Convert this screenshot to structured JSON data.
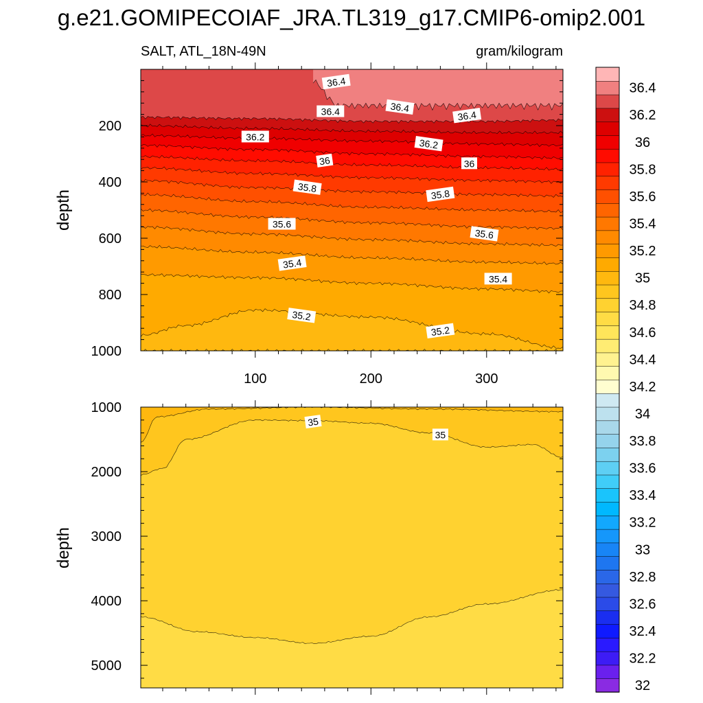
{
  "chart_data": [
    {
      "type": "heatmap",
      "subtype": "filled-contour",
      "panel": "upper",
      "title": "g.e21.GOMIPECOIAF_JRA.TL319_g17.CMIP6-omip2.001",
      "left_string": "SALT, ATL_18N-49N",
      "right_string": "gram/kilogram",
      "ylabel": "depth",
      "xlim": [
        1,
        366
      ],
      "ylim": [
        0,
        1000
      ],
      "y_inverted": true,
      "x_ticks": [
        100,
        200,
        300
      ],
      "x_tick_labels": [
        "100",
        "200",
        "300"
      ],
      "y_ticks": [
        200,
        400,
        600,
        800,
        1000
      ],
      "y_tick_labels": [
        "200",
        "400",
        "600",
        "800",
        "1000"
      ],
      "contour_bands": [
        {
          "lower": 36.4,
          "upper": 36.5,
          "x_start": 150,
          "x_end": 366,
          "depth_top": 0,
          "depth_bottom": 145
        },
        {
          "lower": 36.3,
          "upper": 36.4,
          "depth_at_x": [
            [
              1,
              170
            ],
            [
              100,
              175
            ],
            [
              200,
              185
            ],
            [
              300,
              185
            ],
            [
              366,
              180
            ]
          ]
        },
        {
          "lower": 36.2,
          "upper": 36.3,
          "depth_at_x": [
            [
              1,
              200
            ],
            [
              100,
              210
            ],
            [
              200,
              220
            ],
            [
              300,
              225
            ],
            [
              366,
              225
            ]
          ]
        },
        {
          "lower": 36.1,
          "upper": 36.2,
          "depth_at_x": [
            [
              1,
              235
            ],
            [
              100,
              245
            ],
            [
              200,
              255
            ],
            [
              300,
              265
            ],
            [
              366,
              270
            ]
          ]
        },
        {
          "lower": 36.0,
          "upper": 36.1,
          "depth_at_x": [
            [
              1,
              270
            ],
            [
              100,
              285
            ],
            [
              200,
              300
            ],
            [
              300,
              310
            ],
            [
              366,
              315
            ]
          ]
        },
        {
          "lower": 35.9,
          "upper": 36.0,
          "depth_at_x": [
            [
              1,
              310
            ],
            [
              100,
              325
            ],
            [
              200,
              340
            ],
            [
              300,
              350
            ],
            [
              366,
              355
            ]
          ]
        },
        {
          "lower": 35.8,
          "upper": 35.9,
          "depth_at_x": [
            [
              1,
              350
            ],
            [
              100,
              370
            ],
            [
              200,
              385
            ],
            [
              300,
              395
            ],
            [
              366,
              400
            ]
          ]
        },
        {
          "lower": 35.7,
          "upper": 35.8,
          "depth_at_x": [
            [
              1,
              395
            ],
            [
              100,
              420
            ],
            [
              200,
              435
            ],
            [
              300,
              445
            ],
            [
              366,
              450
            ]
          ]
        },
        {
          "lower": 35.6,
          "upper": 35.7,
          "depth_at_x": [
            [
              1,
              445
            ],
            [
              100,
              470
            ],
            [
              200,
              490
            ],
            [
              300,
              500
            ],
            [
              366,
              505
            ]
          ]
        },
        {
          "lower": 35.5,
          "upper": 35.6,
          "depth_at_x": [
            [
              1,
              500
            ],
            [
              100,
              525
            ],
            [
              200,
              545
            ],
            [
              300,
              560
            ],
            [
              366,
              565
            ]
          ]
        },
        {
          "lower": 35.4,
          "upper": 35.5,
          "depth_at_x": [
            [
              1,
              560
            ],
            [
              100,
              585
            ],
            [
              200,
              605
            ],
            [
              300,
              620
            ],
            [
              366,
              625
            ]
          ]
        },
        {
          "lower": 35.3,
          "upper": 35.4,
          "depth_at_x": [
            [
              1,
              630
            ],
            [
              100,
              650
            ],
            [
              200,
              670
            ],
            [
              300,
              685
            ],
            [
              366,
              690
            ]
          ]
        },
        {
          "lower": 35.2,
          "upper": 35.3,
          "depth_at_x": [
            [
              1,
              730
            ],
            [
              100,
              740
            ],
            [
              200,
              760
            ],
            [
              300,
              780
            ],
            [
              366,
              790
            ]
          ]
        },
        {
          "lower": 35.1,
          "upper": 35.2,
          "depth_at_x": [
            [
              1,
              945
            ],
            [
              40,
              910
            ],
            [
              100,
              855
            ],
            [
              200,
              880
            ],
            [
              300,
              940
            ],
            [
              366,
              990
            ]
          ]
        },
        {
          "lower": 35.0,
          "upper": 35.1,
          "depth_at_x": [
            [
              1,
              1000
            ],
            [
              366,
              1000
            ]
          ]
        }
      ],
      "contour_labels": [
        {
          "text": "36.4",
          "x": 170,
          "depth": 45
        },
        {
          "text": "36.4",
          "x": 165,
          "depth": 150
        },
        {
          "text": "36.4",
          "x": 225,
          "depth": 135
        },
        {
          "text": "36.4",
          "x": 283,
          "depth": 165
        },
        {
          "text": "36.2",
          "x": 100,
          "depth": 240
        },
        {
          "text": "36.2",
          "x": 250,
          "depth": 265
        },
        {
          "text": "36",
          "x": 160,
          "depth": 325
        },
        {
          "text": "36",
          "x": 285,
          "depth": 335
        },
        {
          "text": "35.8",
          "x": 145,
          "depth": 420
        },
        {
          "text": "35.8",
          "x": 260,
          "depth": 445
        },
        {
          "text": "35.6",
          "x": 123,
          "depth": 550
        },
        {
          "text": "35.6",
          "x": 298,
          "depth": 585
        },
        {
          "text": "35.4",
          "x": 132,
          "depth": 690
        },
        {
          "text": "35.4",
          "x": 310,
          "depth": 745
        },
        {
          "text": "35.2",
          "x": 140,
          "depth": 875
        },
        {
          "text": "35.2",
          "x": 260,
          "depth": 930
        }
      ]
    },
    {
      "type": "heatmap",
      "subtype": "filled-contour",
      "panel": "lower",
      "ylabel": "depth",
      "xlim": [
        1,
        366
      ],
      "ylim": [
        1000,
        5350
      ],
      "y_inverted": true,
      "y_ticks": [
        1000,
        2000,
        3000,
        4000,
        5000
      ],
      "y_tick_labels": [
        "1000",
        "2000",
        "3000",
        "4000",
        "5000"
      ],
      "contour_bands": [
        {
          "lower": 35.0,
          "upper": 35.1,
          "depth_at_x": [
            [
              1,
              1550
            ],
            [
              15,
              1150
            ],
            [
              60,
              1030
            ],
            [
              150,
              1000
            ],
            [
              250,
              1030
            ],
            [
              366,
              1070
            ]
          ]
        },
        {
          "lower": 34.9,
          "upper": 35.0,
          "depth_at_x": [
            [
              1,
              2050
            ],
            [
              20,
              1950
            ],
            [
              40,
              1500
            ],
            [
              100,
              1200
            ],
            [
              150,
              1210
            ],
            [
              200,
              1250
            ],
            [
              250,
              1400
            ],
            [
              300,
              1620
            ],
            [
              340,
              1580
            ],
            [
              366,
              1780
            ]
          ]
        },
        {
          "lower": 34.8,
          "upper": 34.9,
          "depth_at_x": [
            [
              1,
              4250
            ],
            [
              50,
              4480
            ],
            [
              100,
              4570
            ],
            [
              150,
              4660
            ],
            [
              200,
              4550
            ],
            [
              250,
              4250
            ],
            [
              300,
              4050
            ],
            [
              366,
              3830
            ]
          ]
        }
      ],
      "contour_labels": [
        {
          "text": "35",
          "x": 150,
          "depth": 1230
        },
        {
          "text": "35",
          "x": 260,
          "depth": 1430
        }
      ]
    },
    {
      "type": "colorbar",
      "orientation": "vertical",
      "levels": [
        32,
        32.1,
        32.2,
        32.3,
        32.4,
        32.5,
        32.6,
        32.7,
        32.8,
        32.9,
        33,
        33.1,
        33.2,
        33.3,
        33.4,
        33.5,
        33.6,
        33.7,
        33.8,
        33.9,
        34,
        34.1,
        34.2,
        34.3,
        34.4,
        34.5,
        34.6,
        34.7,
        34.8,
        34.9,
        35,
        35.1,
        35.2,
        35.3,
        35.4,
        35.5,
        35.6,
        35.7,
        35.8,
        35.9,
        36,
        36.1,
        36.2,
        36.3,
        36.4,
        36.5
      ],
      "tick_labels": [
        "32",
        "32.2",
        "32.4",
        "32.6",
        "32.8",
        "33",
        "33.2",
        "33.4",
        "33.6",
        "33.8",
        "34",
        "34.2",
        "34.4",
        "34.6",
        "34.8",
        "35",
        "35.2",
        "35.4",
        "35.6",
        "35.8",
        "36",
        "36.2",
        "36.4"
      ],
      "colors_bottom_to_top": [
        "#8a2be2",
        "#6a20ee",
        "#3d1cf5",
        "#2a1aff",
        "#0f1aff",
        "#1a2ef0",
        "#2b4be8",
        "#3559e0",
        "#2a67e8",
        "#1e76f0",
        "#1885f6",
        "#1597fb",
        "#12a8fe",
        "#00b8ff",
        "#1ac4fc",
        "#40cdf8",
        "#5ecff4",
        "#7cd1ef",
        "#95d3ec",
        "#a9d8ea",
        "#bde1ee",
        "#cfe9f2",
        "#fffed0",
        "#fff9b0",
        "#fff290",
        "#ffec73",
        "#ffe55a",
        "#ffdc45",
        "#ffd230",
        "#ffc61e",
        "#ffb80f",
        "#ffaa00",
        "#ff9a00",
        "#ff8a00",
        "#ff7800",
        "#ff6500",
        "#ff5000",
        "#ff3a00",
        "#ff2200",
        "#ff0c00",
        "#f00000",
        "#dd0000",
        "#cc1010",
        "#dd4848",
        "#f08080",
        "#ffb6b6"
      ]
    }
  ]
}
